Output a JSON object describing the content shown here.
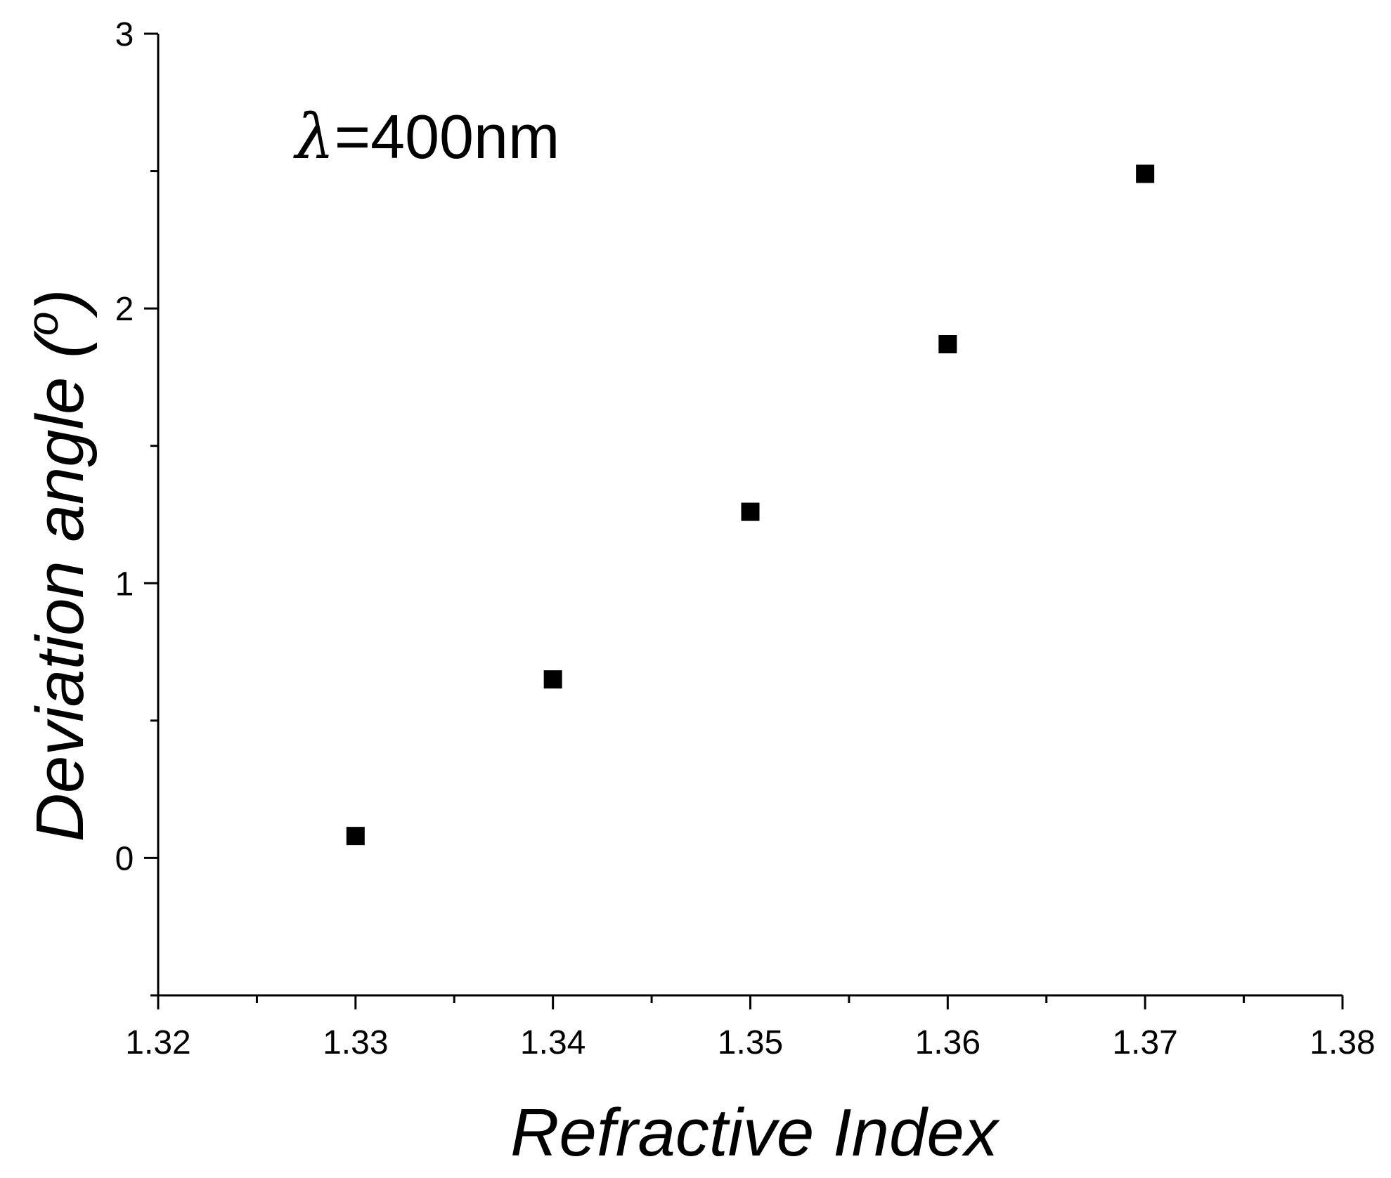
{
  "chart_data": {
    "type": "scatter",
    "annotation": "λ=400nm",
    "xlabel": "Refractive Index",
    "ylabel": "Deviation angle (°)",
    "ylabel_parts": {
      "main": "Deviation angle (",
      "sup": "o",
      "close": ")"
    },
    "xlim": [
      1.32,
      1.38
    ],
    "ylim": [
      -0.5,
      3
    ],
    "x_ticks": [
      {
        "value": 1.32,
        "label": "1.32"
      },
      {
        "value": 1.33,
        "label": "1.33"
      },
      {
        "value": 1.34,
        "label": "1.34"
      },
      {
        "value": 1.35,
        "label": "1.35"
      },
      {
        "value": 1.36,
        "label": "1.36"
      },
      {
        "value": 1.37,
        "label": "1.37"
      },
      {
        "value": 1.38,
        "label": "1.38"
      }
    ],
    "x_minor_ticks": [
      1.325,
      1.335,
      1.345,
      1.355,
      1.365,
      1.375
    ],
    "y_ticks": [
      {
        "value": 0,
        "label": "0"
      },
      {
        "value": 1,
        "label": "1"
      },
      {
        "value": 2,
        "label": "2"
      },
      {
        "value": 3,
        "label": "3"
      }
    ],
    "y_minor_ticks": [
      -0.5,
      0.5,
      1.5,
      2.5
    ],
    "grid": false,
    "marker": "square",
    "marker_color": "#000000",
    "series": [
      {
        "points": [
          {
            "x": 1.33,
            "y": 0.08
          },
          {
            "x": 1.34,
            "y": 0.65
          },
          {
            "x": 1.35,
            "y": 1.26
          },
          {
            "x": 1.36,
            "y": 1.87
          },
          {
            "x": 1.37,
            "y": 2.49
          }
        ]
      }
    ]
  }
}
